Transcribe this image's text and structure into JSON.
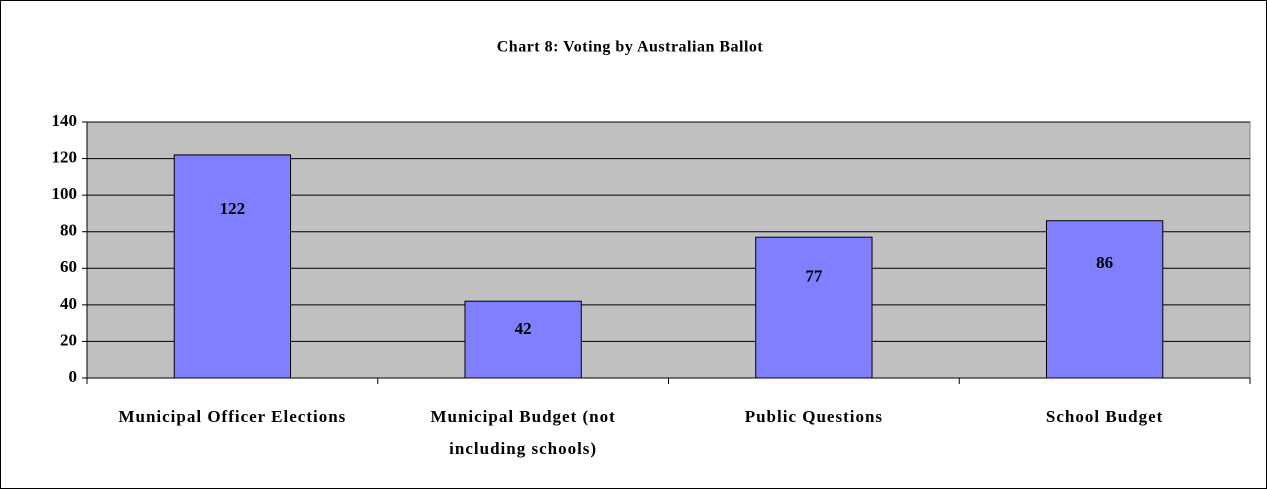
{
  "chart_data": {
    "type": "bar",
    "title": "Chart 8:  Voting by Australian Ballot",
    "categories": [
      "Municipal Officer Elections",
      "Municipal Budget (not including schools)",
      "Public Questions",
      "School Budget"
    ],
    "values": [
      122,
      42,
      77,
      86
    ],
    "color": "#8080ff",
    "background": "#c0c0c0",
    "ylim": [
      0,
      140
    ],
    "yticks": [
      0,
      20,
      40,
      60,
      80,
      100,
      120,
      140
    ],
    "grid": true
  }
}
